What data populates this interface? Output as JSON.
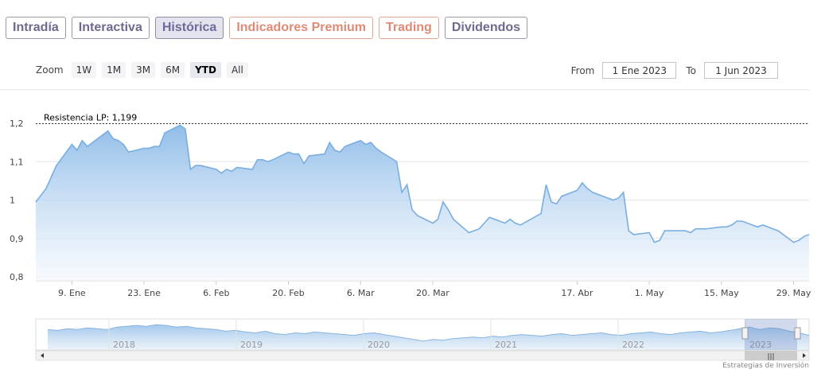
{
  "tabs": [
    {
      "label": "Intradía",
      "state": "normal"
    },
    {
      "label": "Interactiva",
      "state": "normal"
    },
    {
      "label": "Histórica",
      "state": "active"
    },
    {
      "label": "Indicadores Premium",
      "state": "premium"
    },
    {
      "label": "Trading",
      "state": "trading"
    },
    {
      "label": "Dividendos",
      "state": "normal"
    }
  ],
  "zoom": {
    "label": "Zoom",
    "buttons": [
      "1W",
      "1M",
      "3M",
      "6M",
      "YTD",
      "All"
    ],
    "selected": "YTD"
  },
  "date_range": {
    "from_label": "From",
    "from_value": "1 Ene 2023",
    "to_label": "To",
    "to_value": "1 Jun 2023"
  },
  "credit": "Estrategias de Inversión",
  "colors": {
    "line": "#7aaee0",
    "fill_top": "#8bbae8",
    "fill_bottom": "#f2f7fd",
    "grid": "#e6e6e6",
    "resistance": "#333333"
  },
  "chart_data": {
    "type": "area",
    "ylim": [
      0.8,
      1.2
    ],
    "yticks": [
      "0,8",
      "0,9",
      "1",
      "1,1",
      "1,2"
    ],
    "ytick_values": [
      0.8,
      0.9,
      1.0,
      1.1,
      1.2
    ],
    "xlim": [
      "2023-01-02",
      "2023-06-01"
    ],
    "xticks": [
      {
        "label": "9. Ene",
        "date": "2023-01-09"
      },
      {
        "label": "23. Ene",
        "date": "2023-01-23"
      },
      {
        "label": "6. Feb",
        "date": "2023-02-06"
      },
      {
        "label": "20. Feb",
        "date": "2023-02-20"
      },
      {
        "label": "6. Mar",
        "date": "2023-03-06"
      },
      {
        "label": "20. Mar",
        "date": "2023-03-20"
      },
      {
        "label": "17. Abr",
        "date": "2023-04-17"
      },
      {
        "label": "1. May",
        "date": "2023-05-01"
      },
      {
        "label": "15. May",
        "date": "2023-05-15"
      },
      {
        "label": "29. May",
        "date": "2023-05-29"
      }
    ],
    "resistance": {
      "label": "Resistencia LP: 1,199",
      "value": 1.199
    },
    "grid": true,
    "series": [
      {
        "points": [
          [
            "2023-01-02",
            0.995
          ],
          [
            "2023-01-04",
            1.03
          ],
          [
            "2023-01-05",
            1.06
          ],
          [
            "2023-01-06",
            1.09
          ],
          [
            "2023-01-09",
            1.145
          ],
          [
            "2023-01-10",
            1.13
          ],
          [
            "2023-01-11",
            1.155
          ],
          [
            "2023-01-12",
            1.14
          ],
          [
            "2023-01-13",
            1.15
          ],
          [
            "2023-01-16",
            1.18
          ],
          [
            "2023-01-17",
            1.16
          ],
          [
            "2023-01-18",
            1.155
          ],
          [
            "2023-01-19",
            1.145
          ],
          [
            "2023-01-20",
            1.125
          ],
          [
            "2023-01-23",
            1.135
          ],
          [
            "2023-01-24",
            1.135
          ],
          [
            "2023-01-25",
            1.14
          ],
          [
            "2023-01-26",
            1.14
          ],
          [
            "2023-01-27",
            1.175
          ],
          [
            "2023-01-30",
            1.195
          ],
          [
            "2023-01-31",
            1.185
          ],
          [
            "2023-02-01",
            1.08
          ],
          [
            "2023-02-02",
            1.09
          ],
          [
            "2023-02-03",
            1.09
          ],
          [
            "2023-02-06",
            1.08
          ],
          [
            "2023-02-07",
            1.07
          ],
          [
            "2023-02-08",
            1.08
          ],
          [
            "2023-02-09",
            1.075
          ],
          [
            "2023-02-10",
            1.085
          ],
          [
            "2023-02-13",
            1.08
          ],
          [
            "2023-02-14",
            1.105
          ],
          [
            "2023-02-15",
            1.105
          ],
          [
            "2023-02-16",
            1.1
          ],
          [
            "2023-02-17",
            1.105
          ],
          [
            "2023-02-20",
            1.125
          ],
          [
            "2023-02-21",
            1.12
          ],
          [
            "2023-02-22",
            1.12
          ],
          [
            "2023-02-23",
            1.095
          ],
          [
            "2023-02-24",
            1.115
          ],
          [
            "2023-02-27",
            1.12
          ],
          [
            "2023-02-28",
            1.15
          ],
          [
            "2023-03-01",
            1.13
          ],
          [
            "2023-03-02",
            1.125
          ],
          [
            "2023-03-03",
            1.14
          ],
          [
            "2023-03-06",
            1.155
          ],
          [
            "2023-03-07",
            1.145
          ],
          [
            "2023-03-08",
            1.15
          ],
          [
            "2023-03-09",
            1.135
          ],
          [
            "2023-03-10",
            1.125
          ],
          [
            "2023-03-13",
            1.1
          ],
          [
            "2023-03-14",
            1.02
          ],
          [
            "2023-03-15",
            1.04
          ],
          [
            "2023-03-16",
            0.975
          ],
          [
            "2023-03-17",
            0.96
          ],
          [
            "2023-03-20",
            0.94
          ],
          [
            "2023-03-21",
            0.95
          ],
          [
            "2023-03-22",
            0.995
          ],
          [
            "2023-03-23",
            0.975
          ],
          [
            "2023-03-24",
            0.95
          ],
          [
            "2023-03-27",
            0.915
          ],
          [
            "2023-03-28",
            0.92
          ],
          [
            "2023-03-29",
            0.925
          ],
          [
            "2023-03-30",
            0.94
          ],
          [
            "2023-03-31",
            0.955
          ],
          [
            "2023-04-03",
            0.94
          ],
          [
            "2023-04-04",
            0.95
          ],
          [
            "2023-04-05",
            0.94
          ],
          [
            "2023-04-06",
            0.935
          ],
          [
            "2023-04-10",
            0.965
          ],
          [
            "2023-04-11",
            1.04
          ],
          [
            "2023-04-12",
            0.995
          ],
          [
            "2023-04-13",
            0.99
          ],
          [
            "2023-04-14",
            1.01
          ],
          [
            "2023-04-17",
            1.025
          ],
          [
            "2023-04-18",
            1.045
          ],
          [
            "2023-04-19",
            1.03
          ],
          [
            "2023-04-20",
            1.02
          ],
          [
            "2023-04-21",
            1.015
          ],
          [
            "2023-04-24",
            1.0
          ],
          [
            "2023-04-25",
            1.005
          ],
          [
            "2023-04-26",
            1.02
          ],
          [
            "2023-04-27",
            0.92
          ],
          [
            "2023-04-28",
            0.91
          ],
          [
            "2023-05-01",
            0.915
          ],
          [
            "2023-05-02",
            0.89
          ],
          [
            "2023-05-03",
            0.895
          ],
          [
            "2023-05-04",
            0.92
          ],
          [
            "2023-05-05",
            0.92
          ],
          [
            "2023-05-08",
            0.92
          ],
          [
            "2023-05-09",
            0.915
          ],
          [
            "2023-05-10",
            0.925
          ],
          [
            "2023-05-11",
            0.925
          ],
          [
            "2023-05-12",
            0.925
          ],
          [
            "2023-05-15",
            0.93
          ],
          [
            "2023-05-16",
            0.93
          ],
          [
            "2023-05-17",
            0.935
          ],
          [
            "2023-05-18",
            0.945
          ],
          [
            "2023-05-19",
            0.945
          ],
          [
            "2023-05-22",
            0.93
          ],
          [
            "2023-05-23",
            0.935
          ],
          [
            "2023-05-24",
            0.93
          ],
          [
            "2023-05-25",
            0.925
          ],
          [
            "2023-05-26",
            0.92
          ],
          [
            "2023-05-29",
            0.89
          ],
          [
            "2023-05-30",
            0.895
          ],
          [
            "2023-05-31",
            0.905
          ],
          [
            "2023-06-01",
            0.91
          ]
        ]
      }
    ]
  },
  "navigator": {
    "years": [
      "2018",
      "2019",
      "2020",
      "2021",
      "2022",
      "2023"
    ],
    "values": [
      1.02,
      1.01,
      1.03,
      1.02,
      1.04,
      1.03,
      1.02,
      1.05,
      1.06,
      1.07,
      1.06,
      1.08,
      1.07,
      1.05,
      1.06,
      1.04,
      1.03,
      1.02,
      1.0,
      1.01,
      0.99,
      0.98,
      1.0,
      0.97,
      0.96,
      0.98,
      0.97,
      0.99,
      0.98,
      0.97,
      0.96,
      0.95,
      0.97,
      0.98,
      0.96,
      0.94,
      0.92,
      0.9,
      0.88,
      0.9,
      0.89,
      0.91,
      0.92,
      0.93,
      0.92,
      0.94,
      0.93,
      0.95,
      0.96,
      0.95,
      0.94,
      0.96,
      0.97,
      0.95,
      0.96,
      0.97,
      0.98,
      0.96,
      0.95,
      0.97,
      0.98,
      0.99,
      0.97,
      0.96,
      0.98,
      0.99,
      1.0,
      0.98,
      0.99,
      1.01,
      1.03,
      1.05,
      1.02,
      1.04,
      1.03,
      1.0,
      0.98,
      0.95
    ]
  }
}
